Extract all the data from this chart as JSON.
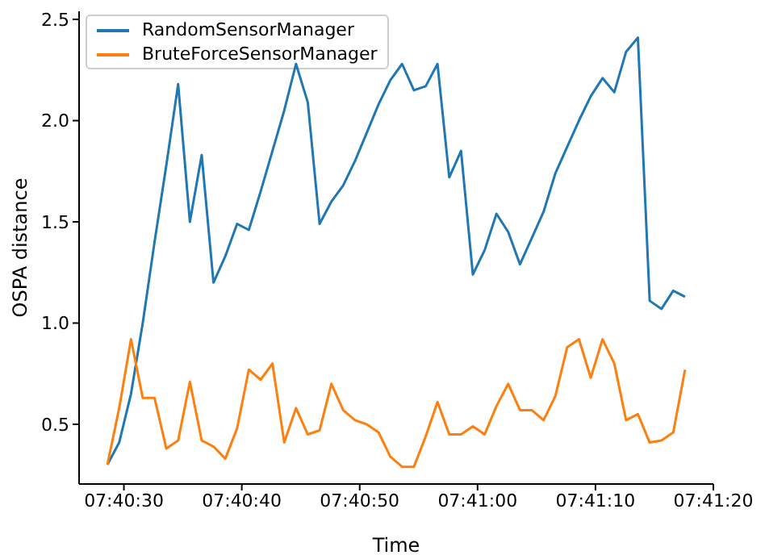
{
  "chart_data": {
    "type": "line",
    "xlabel": "Time",
    "ylabel": "OSPA distance",
    "x": [
      7.674611,
      7.674889,
      7.675167,
      7.675444,
      7.675722,
      7.676,
      7.676278,
      7.676555,
      7.676833,
      7.677111,
      7.677389,
      7.677667,
      7.677944,
      7.678222,
      7.6785,
      7.678778,
      7.679055,
      7.679333,
      7.679611,
      7.679889,
      7.680167,
      7.680444,
      7.680722,
      7.681,
      7.681278,
      7.681555,
      7.681833,
      7.682111,
      7.682389,
      7.682667,
      7.682944,
      7.683222,
      7.6835,
      7.683778,
      7.684055,
      7.684333,
      7.684611,
      7.684889,
      7.685167,
      7.685444,
      7.685722,
      7.686,
      7.686278,
      7.686555,
      7.686833,
      7.687111,
      7.687389,
      7.687667,
      7.687944,
      7.688222
    ],
    "series": [
      {
        "name": "RandomSensorManager",
        "color": "#1f77b4",
        "values": [
          0.3,
          0.41,
          0.65,
          1.0,
          1.4,
          1.78,
          2.18,
          1.5,
          1.83,
          1.2,
          1.33,
          1.49,
          1.46,
          1.65,
          1.85,
          2.05,
          2.28,
          2.09,
          1.49,
          1.6,
          1.68,
          1.8,
          1.94,
          2.08,
          2.2,
          2.28,
          2.15,
          2.17,
          2.28,
          1.72,
          1.85,
          1.24,
          1.36,
          1.54,
          1.45,
          1.29,
          1.42,
          1.55,
          1.74,
          1.87,
          2.0,
          2.12,
          2.21,
          2.14,
          2.34,
          2.41,
          1.11,
          1.07,
          1.16,
          1.13
        ]
      },
      {
        "name": "BruteForceSensorManager",
        "color": "#ff7f0e",
        "values": [
          0.3,
          0.58,
          0.92,
          0.63,
          0.63,
          0.38,
          0.42,
          0.71,
          0.42,
          0.39,
          0.33,
          0.48,
          0.77,
          0.72,
          0.8,
          0.41,
          0.58,
          0.45,
          0.47,
          0.7,
          0.57,
          0.52,
          0.5,
          0.46,
          0.34,
          0.29,
          0.29,
          0.44,
          0.61,
          0.45,
          0.45,
          0.49,
          0.45,
          0.59,
          0.7,
          0.57,
          0.57,
          0.52,
          0.64,
          0.88,
          0.92,
          0.73,
          0.92,
          0.8,
          0.52,
          0.55,
          0.41,
          0.42,
          0.46,
          0.77
        ]
      }
    ],
    "xlim": [
      7.673944,
      7.688889
    ],
    "xticks": [
      {
        "value": 7.675,
        "label": "07:40:30"
      },
      {
        "value": 7.677778,
        "label": "07:40:40"
      },
      {
        "value": 7.680556,
        "label": "07:40:50"
      },
      {
        "value": 7.683333,
        "label": "07:41:00"
      },
      {
        "value": 7.686111,
        "label": "07:41:10"
      },
      {
        "value": 7.688889,
        "label": "07:41:20"
      }
    ],
    "ylim": [
      0.205,
      2.54
    ],
    "yticks": [
      {
        "value": 0.5,
        "label": "0.5"
      },
      {
        "value": 1.0,
        "label": "1.0"
      },
      {
        "value": 1.5,
        "label": "1.5"
      },
      {
        "value": 2.0,
        "label": "2.0"
      },
      {
        "value": 2.5,
        "label": "2.5"
      }
    ],
    "legend": "top left",
    "marker": "none",
    "line_style": "solid"
  }
}
